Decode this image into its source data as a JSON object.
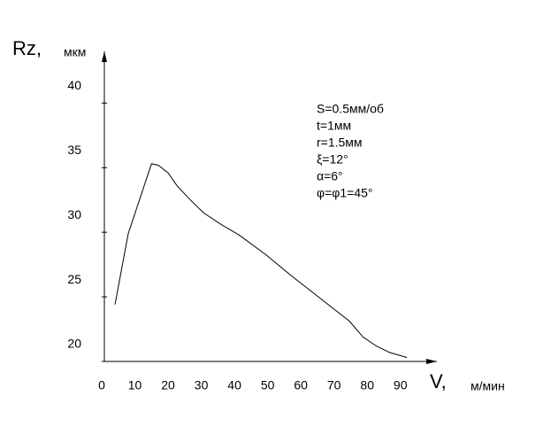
{
  "chart_data": {
    "type": "line",
    "y_label": "Rz,",
    "y_unit": "мкм",
    "x_label": "V,",
    "x_unit": "м/мин",
    "annotations": [
      "S=0.5мм/об",
      "t=1мм",
      "r=1.5мм",
      "ξ=12°",
      "α=6°",
      "φ=φ1=45°"
    ],
    "x": [
      4,
      8,
      15,
      17,
      20,
      22.7,
      26.7,
      30.7,
      36,
      41.3,
      49.3,
      57.3,
      65.3,
      74.7,
      78.7,
      82.7,
      86.7,
      92
    ],
    "series": [
      {
        "color": "#000000",
        "values": [
          24.4,
          29.9,
          35.3,
          35.2,
          34.6,
          33.6,
          32.5,
          31.5,
          30.6,
          29.8,
          28.3,
          26.6,
          25,
          23.1,
          21.9,
          21.2,
          20.7,
          20.3
        ]
      }
    ],
    "xlim": [
      0,
      101
    ],
    "ylim": [
      20,
      44
    ],
    "xticks": [
      0,
      10,
      20,
      30,
      40,
      50,
      60,
      70,
      80,
      90
    ],
    "yticks": [
      20,
      25,
      30,
      35,
      40
    ]
  }
}
